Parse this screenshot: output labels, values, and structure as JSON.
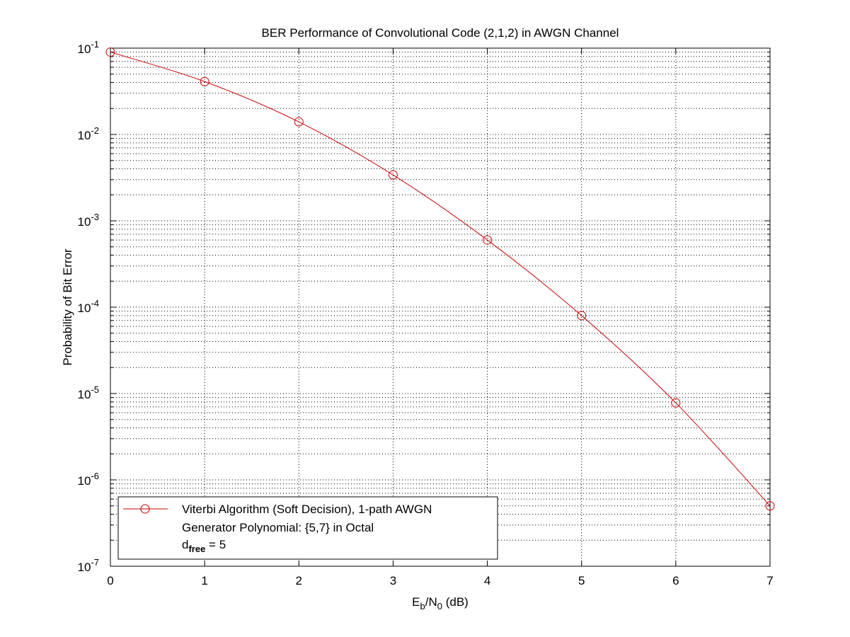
{
  "chart_data": {
    "type": "line",
    "title": "BER Performance of Convolutional Code (2,1,2) in AWGN Channel",
    "xlabel": {
      "base": "E",
      "sub1": "b",
      "mid": "/N",
      "sub2": "0",
      "tail": " (dB)"
    },
    "ylabel": "Probability of Bit Error",
    "xlim": [
      0,
      7
    ],
    "ylim": [
      1e-07,
      0.1
    ],
    "yscale": "log",
    "grid": true,
    "xticks": [
      "0",
      "1",
      "2",
      "3",
      "4",
      "5",
      "6",
      "7"
    ],
    "yticks": [
      {
        "base": "10",
        "exp": "-1"
      },
      {
        "base": "10",
        "exp": "-2"
      },
      {
        "base": "10",
        "exp": "-3"
      },
      {
        "base": "10",
        "exp": "-4"
      },
      {
        "base": "10",
        "exp": "-5"
      },
      {
        "base": "10",
        "exp": "-6"
      },
      {
        "base": "10",
        "exp": "-7"
      }
    ],
    "series": [
      {
        "name": "Viterbi Algorithm (Soft Decision), 1-path AWGN",
        "color": "#cc0000",
        "marker": "circle",
        "x": [
          0,
          1,
          2,
          3,
          4,
          5,
          6,
          7
        ],
        "y": [
          0.09,
          0.041,
          0.014,
          0.0034,
          0.0006,
          8e-05,
          7.8e-06,
          5e-07
        ]
      }
    ],
    "legend": {
      "position": "bottom-left",
      "lines": [
        "Viterbi Algorithm (Soft Decision), 1-path AWGN",
        "Generator Polynomial: {5,7} in Octal"
      ],
      "dfree": {
        "prefix": "d",
        "sub": "free",
        "suffix": " = 5"
      }
    }
  }
}
